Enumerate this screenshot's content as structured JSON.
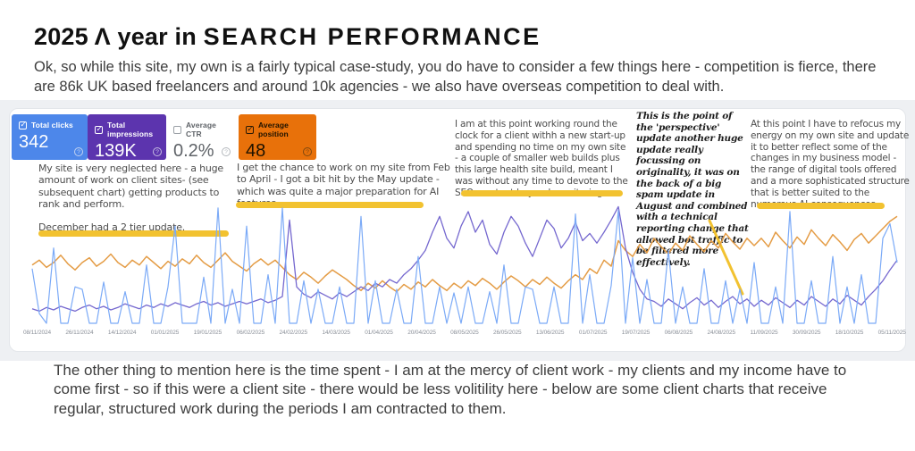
{
  "title": {
    "prefix": "2025 Λ year in ",
    "styled": "SEARCH PERFORMANCE"
  },
  "intro": "Ok, so while this site, my own is a fairly typical case-study, you do have to consider a few things here - competition is fierce, there are 86k UK based freelancers and around 10k agencies - we also have overseas competition to deal with.",
  "metrics": {
    "tiles": [
      {
        "label": "Total clicks",
        "value": "342",
        "checked": true,
        "bg": "#4d87ea"
      },
      {
        "label": "Total impressions",
        "value": "139K",
        "checked": true,
        "bg": "#5c34ae"
      },
      {
        "label": "Average CTR",
        "value": "0.2%",
        "checked": false,
        "bg": "#ffffff"
      },
      {
        "label": "Average position",
        "value": "48",
        "checked": true,
        "bg": "#e8710a"
      }
    ],
    "help_icon": "?"
  },
  "annotations": [
    {
      "text": "My site is very neglected here - a huge amount of work on client sites- (see subsequent chart) getting products to rank and perform.",
      "text2": "December had a 2 tier update."
    },
    {
      "text": "I get the chance to work on my site from Feb to April - I got a bit hit by the May update - which was quite a major preparation for AI features."
    },
    {
      "text": "I am at this point working round the clock for a client withh a new start-up and spending no time on my own site - a couple of smaller web builds plus this large health site build, meant I was without any time to devote to the SEO, content beyond monitoring."
    },
    {
      "text": "This is the point of the 'perspective' update another huge update really focussing on originality, it was on the back of a big spam update in August and combined with a technical reporting change that allowed bot traffic to be filtered more effectively."
    },
    {
      "text": "At this point I have to refocus my energy on my own site and update it to better reflect some of the changes in my business model - the range of digital tools offered and a more sophisticated structure that is better suited to the numerous AI consequences."
    }
  ],
  "chart": {
    "type": "line",
    "note": "Google Search Console style performance chart; no y-axis shown, values are relative height percent of plot area",
    "dates": [
      "08/11/2024",
      "26/11/2024",
      "14/12/2024",
      "01/01/2025",
      "19/01/2025",
      "06/02/2025",
      "24/02/2025",
      "14/03/2025",
      "01/04/2025",
      "20/04/2025",
      "08/05/2025",
      "26/05/2025",
      "13/06/2025",
      "01/07/2025",
      "19/07/2025",
      "06/08/2025",
      "24/08/2025",
      "11/09/2025",
      "30/09/2025",
      "18/10/2025",
      "05/11/2025"
    ],
    "series": [
      {
        "name": "position",
        "color": "#e49c45",
        "width": 1.5,
        "values": [
          48,
          52,
          46,
          50,
          56,
          49,
          44,
          50,
          54,
          47,
          51,
          57,
          50,
          46,
          52,
          48,
          55,
          50,
          45,
          51,
          47,
          53,
          49,
          56,
          50,
          46,
          52,
          58,
          51,
          47,
          43,
          49,
          53,
          48,
          52,
          46,
          40,
          36,
          42,
          38,
          33,
          39,
          44,
          40,
          36,
          31,
          27,
          33,
          29,
          35,
          30,
          26,
          32,
          28,
          34,
          30,
          36,
          31,
          27,
          33,
          29,
          35,
          31,
          37,
          33,
          28,
          34,
          39,
          35,
          30,
          36,
          32,
          38,
          33,
          29,
          35,
          40,
          36,
          45,
          41,
          52,
          47,
          68,
          60,
          55,
          65,
          58,
          70,
          63,
          57,
          66,
          60,
          72,
          65,
          59,
          68,
          62,
          74,
          67,
          61,
          70,
          64,
          70,
          63,
          75,
          68,
          62,
          71,
          65,
          77,
          70,
          64,
          73,
          67,
          60,
          69,
          74,
          66,
          72,
          78,
          84,
          88
        ]
      },
      {
        "name": "impressions",
        "color": "#7568cf",
        "width": 1.3,
        "values": [
          12,
          10,
          13,
          11,
          14,
          12,
          10,
          13,
          15,
          12,
          14,
          11,
          13,
          16,
          14,
          12,
          15,
          13,
          16,
          14,
          17,
          15,
          13,
          16,
          18,
          15,
          17,
          14,
          16,
          18,
          16,
          18,
          20,
          17,
          19,
          22,
          85,
          30,
          24,
          21,
          26,
          23,
          20,
          25,
          22,
          26,
          30,
          27,
          33,
          30,
          36,
          33,
          40,
          45,
          52,
          60,
          75,
          88,
          70,
          62,
          80,
          92,
          75,
          85,
          65,
          57,
          75,
          88,
          80,
          66,
          55,
          70,
          85,
          78,
          62,
          70,
          83,
          68,
          74,
          66,
          75,
          85,
          96,
          62,
          42,
          28,
          20,
          18,
          14,
          20,
          16,
          12,
          17,
          21,
          15,
          19,
          13,
          18,
          22,
          16,
          20,
          14,
          19,
          15,
          21,
          17,
          13,
          19,
          15,
          22,
          18,
          14,
          20,
          16,
          23,
          19,
          15,
          22,
          28,
          35,
          44,
          52
        ]
      },
      {
        "name": "clicks",
        "color": "#7baaf7",
        "width": 1.2,
        "values": [
          45,
          8,
          0,
          62,
          0,
          0,
          30,
          28,
          0,
          0,
          34,
          0,
          0,
          26,
          0,
          0,
          48,
          0,
          0,
          30,
          80,
          0,
          0,
          0,
          38,
          0,
          95,
          0,
          28,
          0,
          80,
          0,
          0,
          40,
          0,
          95,
          0,
          0,
          35,
          0,
          28,
          0,
          0,
          30,
          0,
          0,
          88,
          0,
          35,
          0,
          0,
          28,
          0,
          0,
          55,
          0,
          0,
          30,
          0,
          25,
          0,
          30,
          0,
          0,
          26,
          0,
          48,
          0,
          0,
          30,
          28,
          0,
          0,
          30,
          0,
          0,
          90,
          0,
          40,
          0,
          0,
          31,
          93,
          0,
          54,
          0,
          36,
          0,
          0,
          60,
          0,
          30,
          0,
          0,
          45,
          0,
          0,
          35,
          0,
          28,
          0,
          50,
          0,
          0,
          30,
          0,
          92,
          0,
          0,
          35,
          0,
          0,
          55,
          0,
          30,
          0,
          40,
          0,
          0,
          70,
          82,
          50
        ]
      }
    ]
  },
  "colors": {
    "highlight_yellow": "#f2c230",
    "tile_blue": "#4d87ea",
    "tile_purple": "#5c34ae",
    "tile_orange": "#e8710a",
    "clicks_line": "#7baaf7",
    "impressions_line": "#7568cf",
    "position_line": "#e49c45"
  },
  "outro": "The other thing to mention here is the time spent - I am at the mercy of client work - my clients and my income have to come first - so if this were a client site - there would be less volitility here - below are some client charts that receive regular, structured work during the periods I am contracted to them."
}
